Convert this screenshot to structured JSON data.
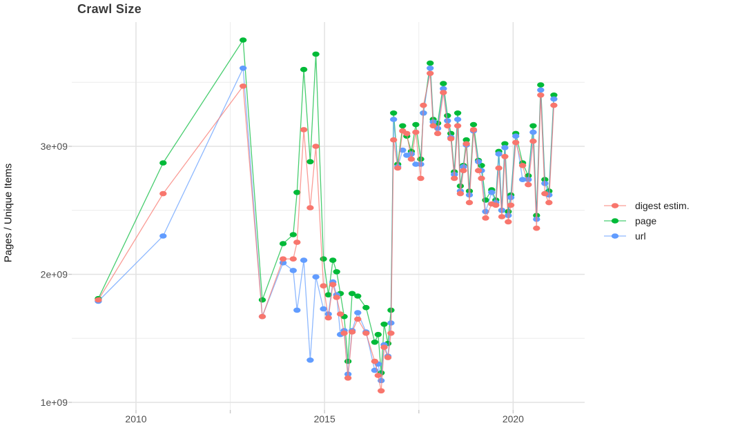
{
  "title": "Crawl Size",
  "y_axis_label": "Pages / Unique Items",
  "colors": {
    "background": "#ffffff",
    "grid_major": "#e2e2e2",
    "grid_minor": "#ececec",
    "tick_mark": "#c9c9c9",
    "tick_text": "#4d4d4d",
    "title_text": "#3a3a3a"
  },
  "chart_data": {
    "type": "line",
    "title": "Crawl Size",
    "xlabel": "",
    "ylabel": "Pages / Unique Items",
    "values_unit": "billions of pages (1e9)",
    "x_unit": "year (decimal)",
    "xlim": [
      2008.3,
      2021.9
    ],
    "ylim_billions": [
      0.94,
      3.97
    ],
    "grid": true,
    "legend_position": "right",
    "x_ticks": {
      "major": [
        2010,
        2015,
        2020
      ],
      "minor": [
        2012.5,
        2017.5
      ],
      "labels": [
        "2010",
        "2015",
        "2020"
      ]
    },
    "y_ticks": {
      "major": [
        1,
        2,
        3
      ],
      "minor": [
        1.5,
        2.5,
        3.5
      ],
      "labels": [
        "1e+09",
        "2e+09",
        "3e+09"
      ]
    },
    "x": [
      2009.0,
      2010.72,
      2012.84,
      2013.35,
      2013.9,
      2014.17,
      2014.27,
      2014.45,
      2014.62,
      2014.77,
      2014.97,
      2015.1,
      2015.22,
      2015.32,
      2015.42,
      2015.52,
      2015.62,
      2015.73,
      2015.88,
      2016.1,
      2016.33,
      2016.42,
      2016.5,
      2016.58,
      2016.68,
      2016.76,
      2016.83,
      2016.94,
      2017.07,
      2017.18,
      2017.3,
      2017.42,
      2017.55,
      2017.62,
      2017.8,
      2017.88,
      2018.0,
      2018.15,
      2018.26,
      2018.35,
      2018.44,
      2018.53,
      2018.6,
      2018.68,
      2018.76,
      2018.84,
      2018.95,
      2019.08,
      2019.16,
      2019.27,
      2019.43,
      2019.54,
      2019.62,
      2019.7,
      2019.78,
      2019.87,
      2019.94,
      2020.07,
      2020.25,
      2020.4,
      2020.53,
      2020.62,
      2020.73,
      2020.84,
      2020.95,
      2021.08
    ],
    "series": [
      {
        "name": "digest estim.",
        "color": "#F8766D",
        "values": [
          1.8,
          2.63,
          3.47,
          1.67,
          2.12,
          2.12,
          2.25,
          3.13,
          2.52,
          3.0,
          1.91,
          1.66,
          1.92,
          1.82,
          1.69,
          1.54,
          1.19,
          1.55,
          1.65,
          1.54,
          1.32,
          1.21,
          1.09,
          1.43,
          1.35,
          1.54,
          3.05,
          2.83,
          3.12,
          3.1,
          2.9,
          3.11,
          2.75,
          3.32,
          3.57,
          3.16,
          3.1,
          3.42,
          3.16,
          3.06,
          2.75,
          3.16,
          2.63,
          2.81,
          3.02,
          2.56,
          3.13,
          2.81,
          2.75,
          2.44,
          2.55,
          2.54,
          2.83,
          2.45,
          2.92,
          2.41,
          2.54,
          3.03,
          2.85,
          2.7,
          3.04,
          2.36,
          3.4,
          2.63,
          2.56,
          3.32
        ]
      },
      {
        "name": "page",
        "color": "#00BA38",
        "values": [
          1.81,
          2.87,
          3.83,
          1.8,
          2.24,
          2.31,
          2.64,
          3.6,
          2.88,
          3.72,
          2.12,
          1.84,
          2.11,
          2.02,
          1.85,
          1.67,
          1.32,
          1.85,
          1.83,
          1.74,
          1.47,
          1.53,
          1.23,
          1.61,
          1.46,
          1.72,
          3.26,
          2.86,
          3.16,
          3.08,
          2.96,
          3.17,
          2.9,
          3.26,
          3.65,
          3.21,
          3.18,
          3.49,
          3.24,
          3.1,
          2.8,
          3.26,
          2.69,
          2.85,
          3.05,
          2.65,
          3.17,
          2.89,
          2.85,
          2.58,
          2.66,
          2.58,
          2.96,
          2.5,
          3.02,
          2.49,
          2.62,
          3.1,
          2.87,
          2.77,
          3.16,
          2.46,
          3.48,
          2.74,
          2.65,
          3.4
        ]
      },
      {
        "name": "url",
        "color": "#619CFF",
        "values": [
          1.79,
          2.3,
          3.61,
          1.67,
          2.09,
          2.03,
          1.72,
          2.11,
          1.33,
          1.98,
          1.73,
          1.69,
          1.94,
          1.84,
          1.53,
          1.56,
          1.22,
          1.56,
          1.7,
          1.55,
          1.25,
          1.3,
          1.17,
          1.45,
          1.36,
          1.62,
          3.21,
          2.84,
          2.97,
          2.93,
          2.94,
          2.86,
          2.86,
          3.26,
          3.61,
          3.19,
          3.14,
          3.45,
          3.2,
          3.07,
          2.78,
          3.21,
          2.65,
          2.84,
          3.01,
          2.62,
          3.12,
          2.88,
          2.81,
          2.49,
          2.64,
          2.56,
          2.94,
          2.5,
          2.99,
          2.46,
          2.6,
          3.08,
          2.74,
          2.74,
          3.11,
          2.43,
          3.44,
          2.71,
          2.62,
          3.37
        ]
      }
    ],
    "draw_order": [
      1,
      2,
      0
    ]
  }
}
